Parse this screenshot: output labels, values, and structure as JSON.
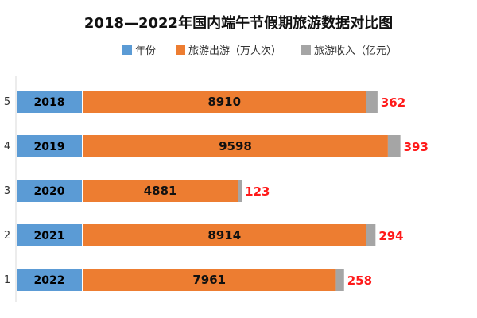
{
  "chart_data": {
    "type": "bar",
    "orientation": "horizontal",
    "stacked": true,
    "title": "2018—2022年国内端午节假期旅游数据对比图",
    "categories": [
      "5",
      "4",
      "3",
      "2",
      "1"
    ],
    "series": [
      {
        "name": "年份",
        "values": [
          2018,
          2019,
          2020,
          2021,
          2022
        ],
        "color": "#5b9bd5"
      },
      {
        "name": "旅游出游（万人次）",
        "values": [
          8910,
          9598,
          4881,
          8914,
          7961
        ],
        "color": "#ed7d31"
      },
      {
        "name": "旅游收入（亿元）",
        "values": [
          362,
          393,
          123,
          294,
          258
        ],
        "color": "#a5a5a5"
      }
    ],
    "legend_position": "top",
    "grid": false,
    "label_colors": {
      "year": "#000000",
      "visitors": "#111111",
      "income": "#ff1a1a"
    }
  }
}
